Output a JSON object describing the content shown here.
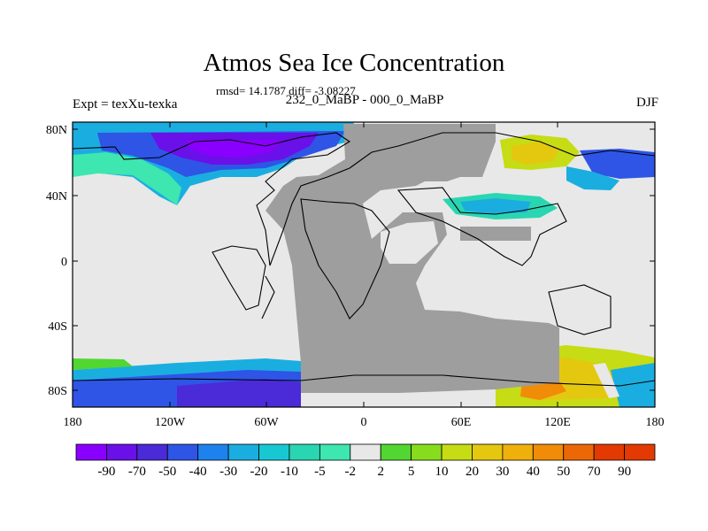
{
  "title": "Atmos Sea Ice Concentration",
  "stats": "rmsd= 14.1787 diff= -3.08227",
  "subtitle": "232_0_MaBP - 000_0_MaBP",
  "experiment": "Expt = texXu-texka",
  "season": "DJF",
  "map": {
    "lat_labels": [
      "80N",
      "40N",
      "0",
      "40S",
      "80S"
    ],
    "lon_labels": [
      "180",
      "120W",
      "60W",
      "0",
      "60E",
      "120E",
      "180"
    ],
    "colors": {
      "land": "#9e9e9e",
      "no_change": "#e8e8e8",
      "coast": "#000000"
    }
  },
  "colorbar": {
    "labels": [
      "-90",
      "-70",
      "-50",
      "-40",
      "-30",
      "-20",
      "-10",
      "-5",
      "-2",
      "2",
      "5",
      "10",
      "20",
      "30",
      "40",
      "50",
      "70",
      "90"
    ],
    "colors": [
      "#8a00ff",
      "#6a10e8",
      "#4b2ad8",
      "#2e55e6",
      "#1e82ee",
      "#1aaee0",
      "#17c8d2",
      "#2ad6b2",
      "#3ee6b0",
      "#e8e8e8",
      "#52d632",
      "#88dc1e",
      "#c6dc14",
      "#e4c810",
      "#f0b00c",
      "#f08c08",
      "#ec6806",
      "#e23a02"
    ]
  }
}
